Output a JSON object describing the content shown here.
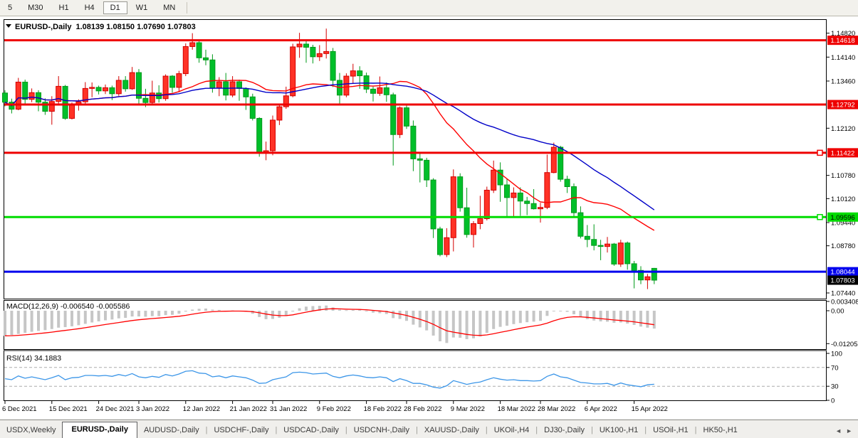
{
  "toolbar": {
    "items": [
      {
        "label": "5",
        "active": false
      },
      {
        "label": "M30",
        "active": false
      },
      {
        "label": "H1",
        "active": false
      },
      {
        "label": "H4",
        "active": false
      },
      {
        "label": "D1",
        "active": true
      },
      {
        "label": "W1",
        "active": false
      },
      {
        "label": "MN",
        "active": false
      }
    ]
  },
  "chart_header": {
    "dropdown_icon": "▼",
    "title": "EURUSD-,Daily",
    "ohlc_text": "1.08139 1.08150 1.07690 1.07803"
  },
  "indicators": {
    "macd_label": "MACD(12,26,9) -0.006540 -0.005586",
    "rsi_label": "RSI(14) 34.1883"
  },
  "price_axis": {
    "ticks": [
      1.1482,
      1.1414,
      1.1346,
      1.1212,
      1.1078,
      1.1012,
      1.0944,
      1.0878,
      1.0744
    ],
    "badges": [
      {
        "value": "1.14618",
        "price": 1.14618,
        "bg": "#EE0000",
        "fg": "#FFFFFF"
      },
      {
        "value": "1.12792",
        "price": 1.12792,
        "bg": "#EE0000",
        "fg": "#FFFFFF"
      },
      {
        "value": "1.11422",
        "price": 1.11422,
        "bg": "#EE0000",
        "fg": "#FFFFFF"
      },
      {
        "value": "1.09596",
        "price": 1.09596,
        "bg": "#00DC00",
        "fg": "#000000"
      },
      {
        "value": "1.08044",
        "price": 1.08044,
        "bg": "#0000EE",
        "fg": "#FFFFFF"
      },
      {
        "value": "1.07803",
        "price": 1.07803,
        "bg": "#000000",
        "fg": "#FFFFFF"
      }
    ]
  },
  "macd_axis": [
    {
      "label": "0.003408",
      "value": 0.003408
    },
    {
      "label": "0.00",
      "value": 0
    },
    {
      "label": "-0.01205",
      "value": -0.01205
    }
  ],
  "rsi_axis": [
    {
      "label": "100",
      "value": 100,
      "dashed": false
    },
    {
      "label": "70",
      "value": 70,
      "dashed": true
    },
    {
      "label": "30",
      "value": 30,
      "dashed": true
    },
    {
      "label": "0",
      "value": 0,
      "dashed": false
    }
  ],
  "chart_data": {
    "type": "candlestick",
    "symbol": "EURUSD-",
    "timeframe": "Daily",
    "last_bar": {
      "open": 1.08139,
      "high": 1.0815,
      "low": 1.0769,
      "close": 1.07803
    },
    "candles": [
      [
        1.1312,
        1.132,
        1.1274,
        1.1286
      ],
      [
        1.1286,
        1.1296,
        1.1254,
        1.1266
      ],
      [
        1.1266,
        1.1355,
        1.1263,
        1.1343
      ],
      [
        1.1343,
        1.135,
        1.128,
        1.1294
      ],
      [
        1.1294,
        1.1325,
        1.1286,
        1.1313
      ],
      [
        1.1313,
        1.132,
        1.126,
        1.1286
      ],
      [
        1.1286,
        1.1297,
        1.125,
        1.126
      ],
      [
        1.126,
        1.1303,
        1.1222,
        1.1288
      ],
      [
        1.1288,
        1.136,
        1.128,
        1.1331
      ],
      [
        1.1331,
        1.1335,
        1.1236,
        1.124
      ],
      [
        1.124,
        1.1285,
        1.1237,
        1.128
      ],
      [
        1.128,
        1.1294,
        1.1262,
        1.1287
      ],
      [
        1.1287,
        1.1343,
        1.128,
        1.1325
      ],
      [
        1.1325,
        1.1342,
        1.13,
        1.1328
      ],
      [
        1.1328,
        1.1333,
        1.1308,
        1.1318
      ],
      [
        1.1318,
        1.1336,
        1.1309,
        1.1327
      ],
      [
        1.1327,
        1.1333,
        1.1292,
        1.131
      ],
      [
        1.131,
        1.136,
        1.1304,
        1.1348
      ],
      [
        1.1348,
        1.136,
        1.1316,
        1.1324
      ],
      [
        1.1324,
        1.1386,
        1.1321,
        1.137
      ],
      [
        1.137,
        1.138,
        1.1279,
        1.1297
      ],
      [
        1.1297,
        1.1324,
        1.1272,
        1.1285
      ],
      [
        1.1285,
        1.1347,
        1.1282,
        1.1312
      ],
      [
        1.1312,
        1.1334,
        1.1285,
        1.1296
      ],
      [
        1.1296,
        1.1365,
        1.129,
        1.136
      ],
      [
        1.136,
        1.1363,
        1.1313,
        1.1328
      ],
      [
        1.1328,
        1.1375,
        1.1314,
        1.1367
      ],
      [
        1.1367,
        1.1453,
        1.136,
        1.1444
      ],
      [
        1.1444,
        1.1482,
        1.1435,
        1.1455
      ],
      [
        1.1455,
        1.146,
        1.1398,
        1.1412
      ],
      [
        1.1412,
        1.1435,
        1.1391,
        1.1406
      ],
      [
        1.1406,
        1.1422,
        1.1313,
        1.1326
      ],
      [
        1.1326,
        1.1357,
        1.1303,
        1.1344
      ],
      [
        1.1344,
        1.1369,
        1.1291,
        1.1306
      ],
      [
        1.1306,
        1.136,
        1.13,
        1.1344
      ],
      [
        1.1344,
        1.135,
        1.129,
        1.1325
      ],
      [
        1.1325,
        1.1328,
        1.1264,
        1.1301
      ],
      [
        1.1301,
        1.131,
        1.1234,
        1.124
      ],
      [
        1.124,
        1.1243,
        1.1131,
        1.1144
      ],
      [
        1.1144,
        1.1174,
        1.1121,
        1.1148
      ],
      [
        1.1148,
        1.1248,
        1.1135,
        1.1235
      ],
      [
        1.1235,
        1.128,
        1.1221,
        1.1273
      ],
      [
        1.1273,
        1.133,
        1.1267,
        1.1304
      ],
      [
        1.1304,
        1.1452,
        1.13,
        1.1443
      ],
      [
        1.1443,
        1.1483,
        1.1412,
        1.1451
      ],
      [
        1.1451,
        1.146,
        1.1398,
        1.1442
      ],
      [
        1.1442,
        1.1449,
        1.1396,
        1.1415
      ],
      [
        1.1415,
        1.1448,
        1.1403,
        1.1424
      ],
      [
        1.1424,
        1.1495,
        1.141,
        1.143
      ],
      [
        1.143,
        1.144,
        1.1329,
        1.1348
      ],
      [
        1.1348,
        1.1369,
        1.128,
        1.1306
      ],
      [
        1.1306,
        1.1368,
        1.13,
        1.136
      ],
      [
        1.136,
        1.1395,
        1.134,
        1.1375
      ],
      [
        1.1375,
        1.1388,
        1.1324,
        1.1361
      ],
      [
        1.1361,
        1.137,
        1.1312,
        1.1323
      ],
      [
        1.1323,
        1.133,
        1.1288,
        1.1311
      ],
      [
        1.1311,
        1.1359,
        1.1304,
        1.1327
      ],
      [
        1.1327,
        1.1342,
        1.1287,
        1.1307
      ],
      [
        1.1307,
        1.1313,
        1.1106,
        1.1194
      ],
      [
        1.1194,
        1.1274,
        1.1184,
        1.127
      ],
      [
        1.127,
        1.1279,
        1.121,
        1.1218
      ],
      [
        1.1218,
        1.1234,
        1.109,
        1.1125
      ],
      [
        1.1125,
        1.114,
        1.1058,
        1.1121
      ],
      [
        1.1121,
        1.1128,
        1.1045,
        1.1065
      ],
      [
        1.1065,
        1.107,
        1.09,
        1.0926
      ],
      [
        1.0926,
        1.0932,
        1.0848,
        1.0853
      ],
      [
        1.0853,
        1.0928,
        1.0846,
        1.0901
      ],
      [
        1.0901,
        1.1095,
        1.0862,
        1.1074
      ],
      [
        1.1074,
        1.1084,
        1.0975,
        1.0986
      ],
      [
        1.0986,
        1.1043,
        1.0901,
        1.091
      ],
      [
        1.091,
        1.0948,
        1.0873,
        1.0941
      ],
      [
        1.0941,
        1.102,
        1.0925,
        1.0955
      ],
      [
        1.0955,
        1.1046,
        1.095,
        1.1036
      ],
      [
        1.1036,
        1.112,
        1.1028,
        1.1093
      ],
      [
        1.1093,
        1.1115,
        1.1003,
        1.1051
      ],
      [
        1.1051,
        1.1069,
        1.0961,
        1.1015
      ],
      [
        1.1015,
        1.1044,
        1.0962,
        1.1028
      ],
      [
        1.1028,
        1.1044,
        1.0963,
        1.1005
      ],
      [
        1.1005,
        1.1017,
        1.0965,
        1.0998
      ],
      [
        1.0998,
        1.1039,
        1.0981,
        1.0983
      ],
      [
        1.0983,
        1.1,
        1.0944,
        1.0987
      ],
      [
        1.0987,
        1.1137,
        1.0982,
        1.1086
      ],
      [
        1.1086,
        1.1171,
        1.1084,
        1.1158
      ],
      [
        1.1158,
        1.1162,
        1.106,
        1.1067
      ],
      [
        1.1067,
        1.1077,
        1.1028,
        1.1046
      ],
      [
        1.1046,
        1.1055,
        1.096,
        1.0972
      ],
      [
        1.0972,
        1.099,
        1.0899,
        1.0905
      ],
      [
        1.0905,
        1.0937,
        1.0874,
        1.0896
      ],
      [
        1.0896,
        1.0939,
        1.0865,
        1.0879
      ],
      [
        1.0879,
        1.0895,
        1.0837,
        1.0876
      ],
      [
        1.0876,
        1.0903,
        1.0859,
        1.0883
      ],
      [
        1.0883,
        1.0886,
        1.0821,
        1.0826
      ],
      [
        1.0826,
        1.0895,
        1.0818,
        1.0886
      ],
      [
        1.0886,
        1.089,
        1.081,
        1.0827
      ],
      [
        1.0827,
        1.0835,
        1.0757,
        1.0808
      ],
      [
        1.0808,
        1.082,
        1.0769,
        1.0781
      ],
      [
        1.0781,
        1.0798,
        1.0755,
        1.079
      ],
      [
        1.08139,
        1.0815,
        1.0769,
        1.07803
      ]
    ],
    "date_ticks": [
      [
        0,
        "6 Dec 2021"
      ],
      [
        7,
        "15 Dec 2021"
      ],
      [
        14,
        "24 Dec 2021"
      ],
      [
        20,
        "3 Jan 2022"
      ],
      [
        27,
        "12 Jan 2022"
      ],
      [
        34,
        "21 Jan 2022"
      ],
      [
        40,
        "31 Jan 2022"
      ],
      [
        47,
        "9 Feb 2022"
      ],
      [
        54,
        "18 Feb 2022"
      ],
      [
        60,
        "28 Feb 2022"
      ],
      [
        67,
        "9 Mar 2022"
      ],
      [
        74,
        "18 Mar 2022"
      ],
      [
        80,
        "28 Mar 2022"
      ],
      [
        87,
        "6 Apr 2022"
      ],
      [
        94,
        "15 Apr 2022"
      ]
    ],
    "moving_averages": [
      {
        "name": "ma-fast",
        "period": 20,
        "color": "#FF0000"
      },
      {
        "name": "ma-slow",
        "period": 40,
        "color": "#0000C8"
      }
    ],
    "hlines": [
      {
        "price": 1.14618,
        "color": "#EE0000",
        "handle": false
      },
      {
        "price": 1.12792,
        "color": "#EE0000",
        "handle": false
      },
      {
        "price": 1.11422,
        "color": "#EE0000",
        "handle": true
      },
      {
        "price": 1.09596,
        "color": "#00DC00",
        "handle": true
      },
      {
        "price": 1.08044,
        "color": "#0000EE",
        "handle": false
      }
    ],
    "macd": {
      "histogram": [
        -0.0092,
        -0.0089,
        -0.0085,
        -0.0081,
        -0.0077,
        -0.0074,
        -0.0071,
        -0.0067,
        -0.0062,
        -0.006,
        -0.0057,
        -0.0053,
        -0.0048,
        -0.0043,
        -0.0039,
        -0.0035,
        -0.0032,
        -0.0028,
        -0.0026,
        -0.0021,
        -0.0021,
        -0.0022,
        -0.002,
        -0.002,
        -0.0016,
        -0.0015,
        -0.0011,
        -0.0003,
        0.0004,
        0.0007,
        0.0008,
        0.0004,
        0.0003,
        0.0,
        0.0001,
        -0.0001,
        -0.0004,
        -0.0011,
        -0.0023,
        -0.0031,
        -0.003,
        -0.0026,
        -0.0019,
        -0.0003,
        0.0009,
        0.0015,
        0.0017,
        0.0018,
        0.0019,
        0.0012,
        0.0004,
        0.0002,
        0.0003,
        0.0003,
        -0.0002,
        -0.0007,
        -0.0009,
        -0.0012,
        -0.0027,
        -0.003,
        -0.0037,
        -0.0051,
        -0.0061,
        -0.0072,
        -0.0091,
        -0.0112,
        -0.0118,
        -0.0098,
        -0.0099,
        -0.0104,
        -0.0101,
        -0.0094,
        -0.0081,
        -0.0067,
        -0.0059,
        -0.0055,
        -0.0049,
        -0.0045,
        -0.0042,
        -0.004,
        -0.0037,
        -0.0019,
        -0.0002,
        -0.0001,
        -0.0004,
        -0.0013,
        -0.0023,
        -0.0031,
        -0.0036,
        -0.0039,
        -0.004,
        -0.0044,
        -0.0043,
        -0.0047,
        -0.0052,
        -0.0058,
        -0.0062,
        -0.00654
      ],
      "signal_period": 9,
      "values_text": [
        "-0.006540",
        "-0.005586"
      ]
    },
    "rsi": {
      "values": [
        46,
        44,
        52,
        47,
        50,
        47,
        44,
        48,
        53,
        44,
        48,
        49,
        53,
        53,
        52,
        53,
        51,
        55,
        52,
        57,
        50,
        48,
        51,
        49,
        55,
        52,
        56,
        62,
        63,
        58,
        57,
        50,
        52,
        48,
        52,
        50,
        48,
        43,
        36,
        37,
        44,
        47,
        50,
        59,
        60,
        59,
        56,
        57,
        58,
        51,
        48,
        52,
        54,
        52,
        49,
        48,
        50,
        48,
        40,
        46,
        42,
        36,
        36,
        33,
        28,
        26,
        31,
        42,
        38,
        34,
        37,
        39,
        44,
        48,
        45,
        43,
        44,
        42,
        42,
        41,
        42,
        51,
        56,
        50,
        48,
        43,
        38,
        37,
        35,
        35,
        36,
        32,
        37,
        33,
        31,
        29,
        33,
        34.1883
      ],
      "levels": [
        70,
        30
      ],
      "current": 34.1883
    },
    "colors": {
      "bull_fill": "#FF3226",
      "bull_stroke": "#D40000",
      "bear_fill": "#00BF2A",
      "bear_stroke": "#009A1A",
      "macd_bar": "#C6C6C6",
      "macd_signal": "#FF0000",
      "rsi_line": "#3C96E8",
      "level_dash": "#ABABAB"
    }
  },
  "tabs": {
    "items": [
      {
        "label": "USDX,Weekly",
        "active": false
      },
      {
        "label": "EURUSD-,Daily",
        "active": true
      },
      {
        "label": "AUDUSD-,Daily",
        "active": false
      },
      {
        "label": "USDCHF-,Daily",
        "active": false
      },
      {
        "label": "USDCAD-,Daily",
        "active": false
      },
      {
        "label": "USDCNH-,Daily",
        "active": false
      },
      {
        "label": "XAUUSD-,Daily",
        "active": false
      },
      {
        "label": "UKOil-,H4",
        "active": false
      },
      {
        "label": "DJ30-,Daily",
        "active": false
      },
      {
        "label": "UK100-,H1",
        "active": false
      },
      {
        "label": "USOil-,H1",
        "active": false
      },
      {
        "label": "HK50-,H1",
        "active": false
      }
    ],
    "scroll_left": "◄",
    "scroll_right": "►"
  }
}
